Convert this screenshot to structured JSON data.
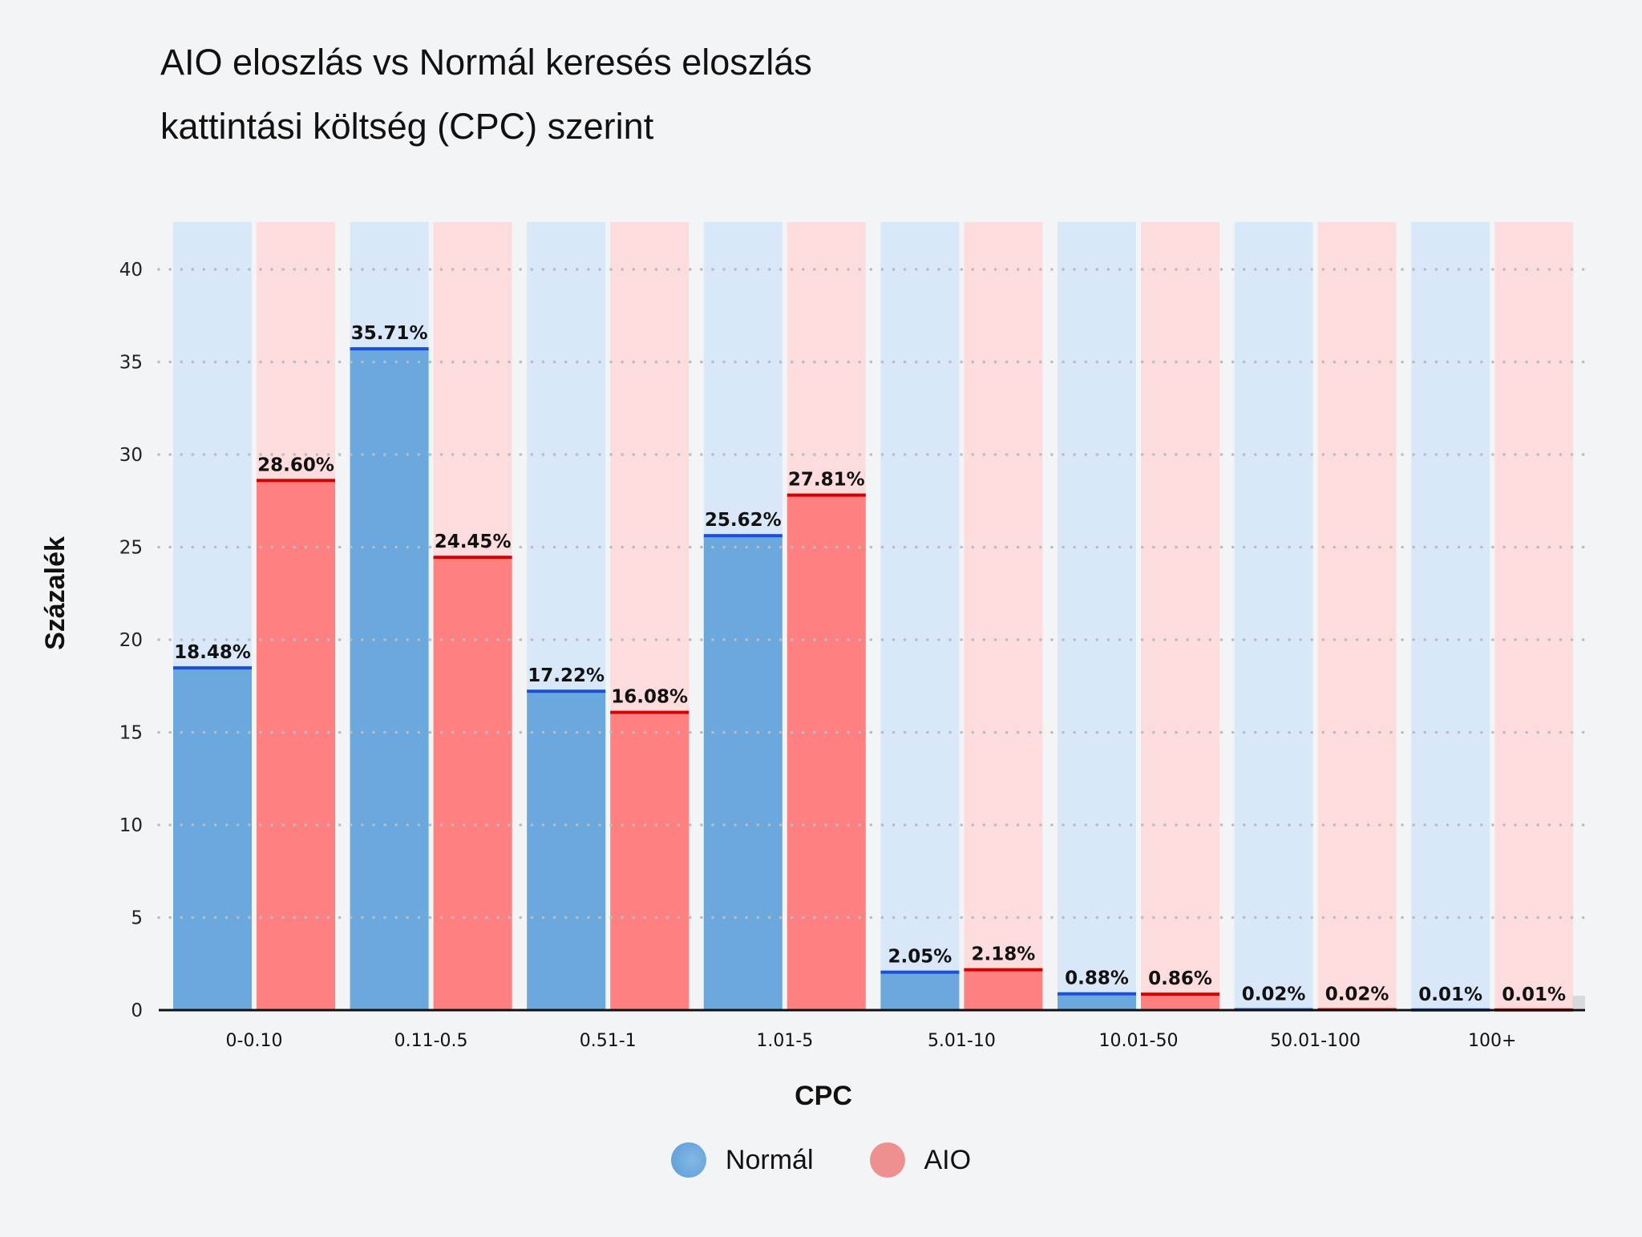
{
  "chart_data": {
    "type": "bar",
    "title": "AIO eloszlás vs Normál keresés eloszlás",
    "subtitle": "kattintási költség (CPC) szerint",
    "xlabel": "CPC",
    "ylabel": "Százalék",
    "ylim": [
      0,
      42
    ],
    "yticks": [
      0,
      5,
      10,
      15,
      20,
      25,
      30,
      35,
      40
    ],
    "grid": true,
    "legend_position": "bottom-center",
    "categories": [
      "0-0.10",
      "0.11-0.5",
      "0.51-1",
      "1.01-5",
      "5.01-10",
      "10.01-50",
      "50.01-100",
      "100+"
    ],
    "series": [
      {
        "name": "Normál",
        "color": "#6aa8de",
        "background_color": "#d8e8f8",
        "line_color": "#1a4fd6",
        "values": [
          18.48,
          35.71,
          17.22,
          25.62,
          2.05,
          0.88,
          0.02,
          0.01
        ],
        "labels": [
          "18.48%",
          "35.71%",
          "17.22%",
          "25.62%",
          "2.05%",
          "0.88%",
          "0.02%",
          "0.01%"
        ]
      },
      {
        "name": "AIO",
        "color": "#ff8080",
        "background_color": "#fddcde",
        "line_color": "#d40000",
        "values": [
          28.6,
          24.45,
          16.08,
          27.81,
          2.18,
          0.86,
          0.02,
          0.01
        ],
        "labels": [
          "28.60%",
          "24.45%",
          "16.08%",
          "27.81%",
          "2.18%",
          "0.86%",
          "0.02%",
          "0.01%"
        ]
      }
    ]
  },
  "legend": {
    "items": [
      {
        "label": "Normál",
        "color": "#6aa8de"
      },
      {
        "label": "AIO",
        "color": "#ef9090"
      }
    ]
  }
}
